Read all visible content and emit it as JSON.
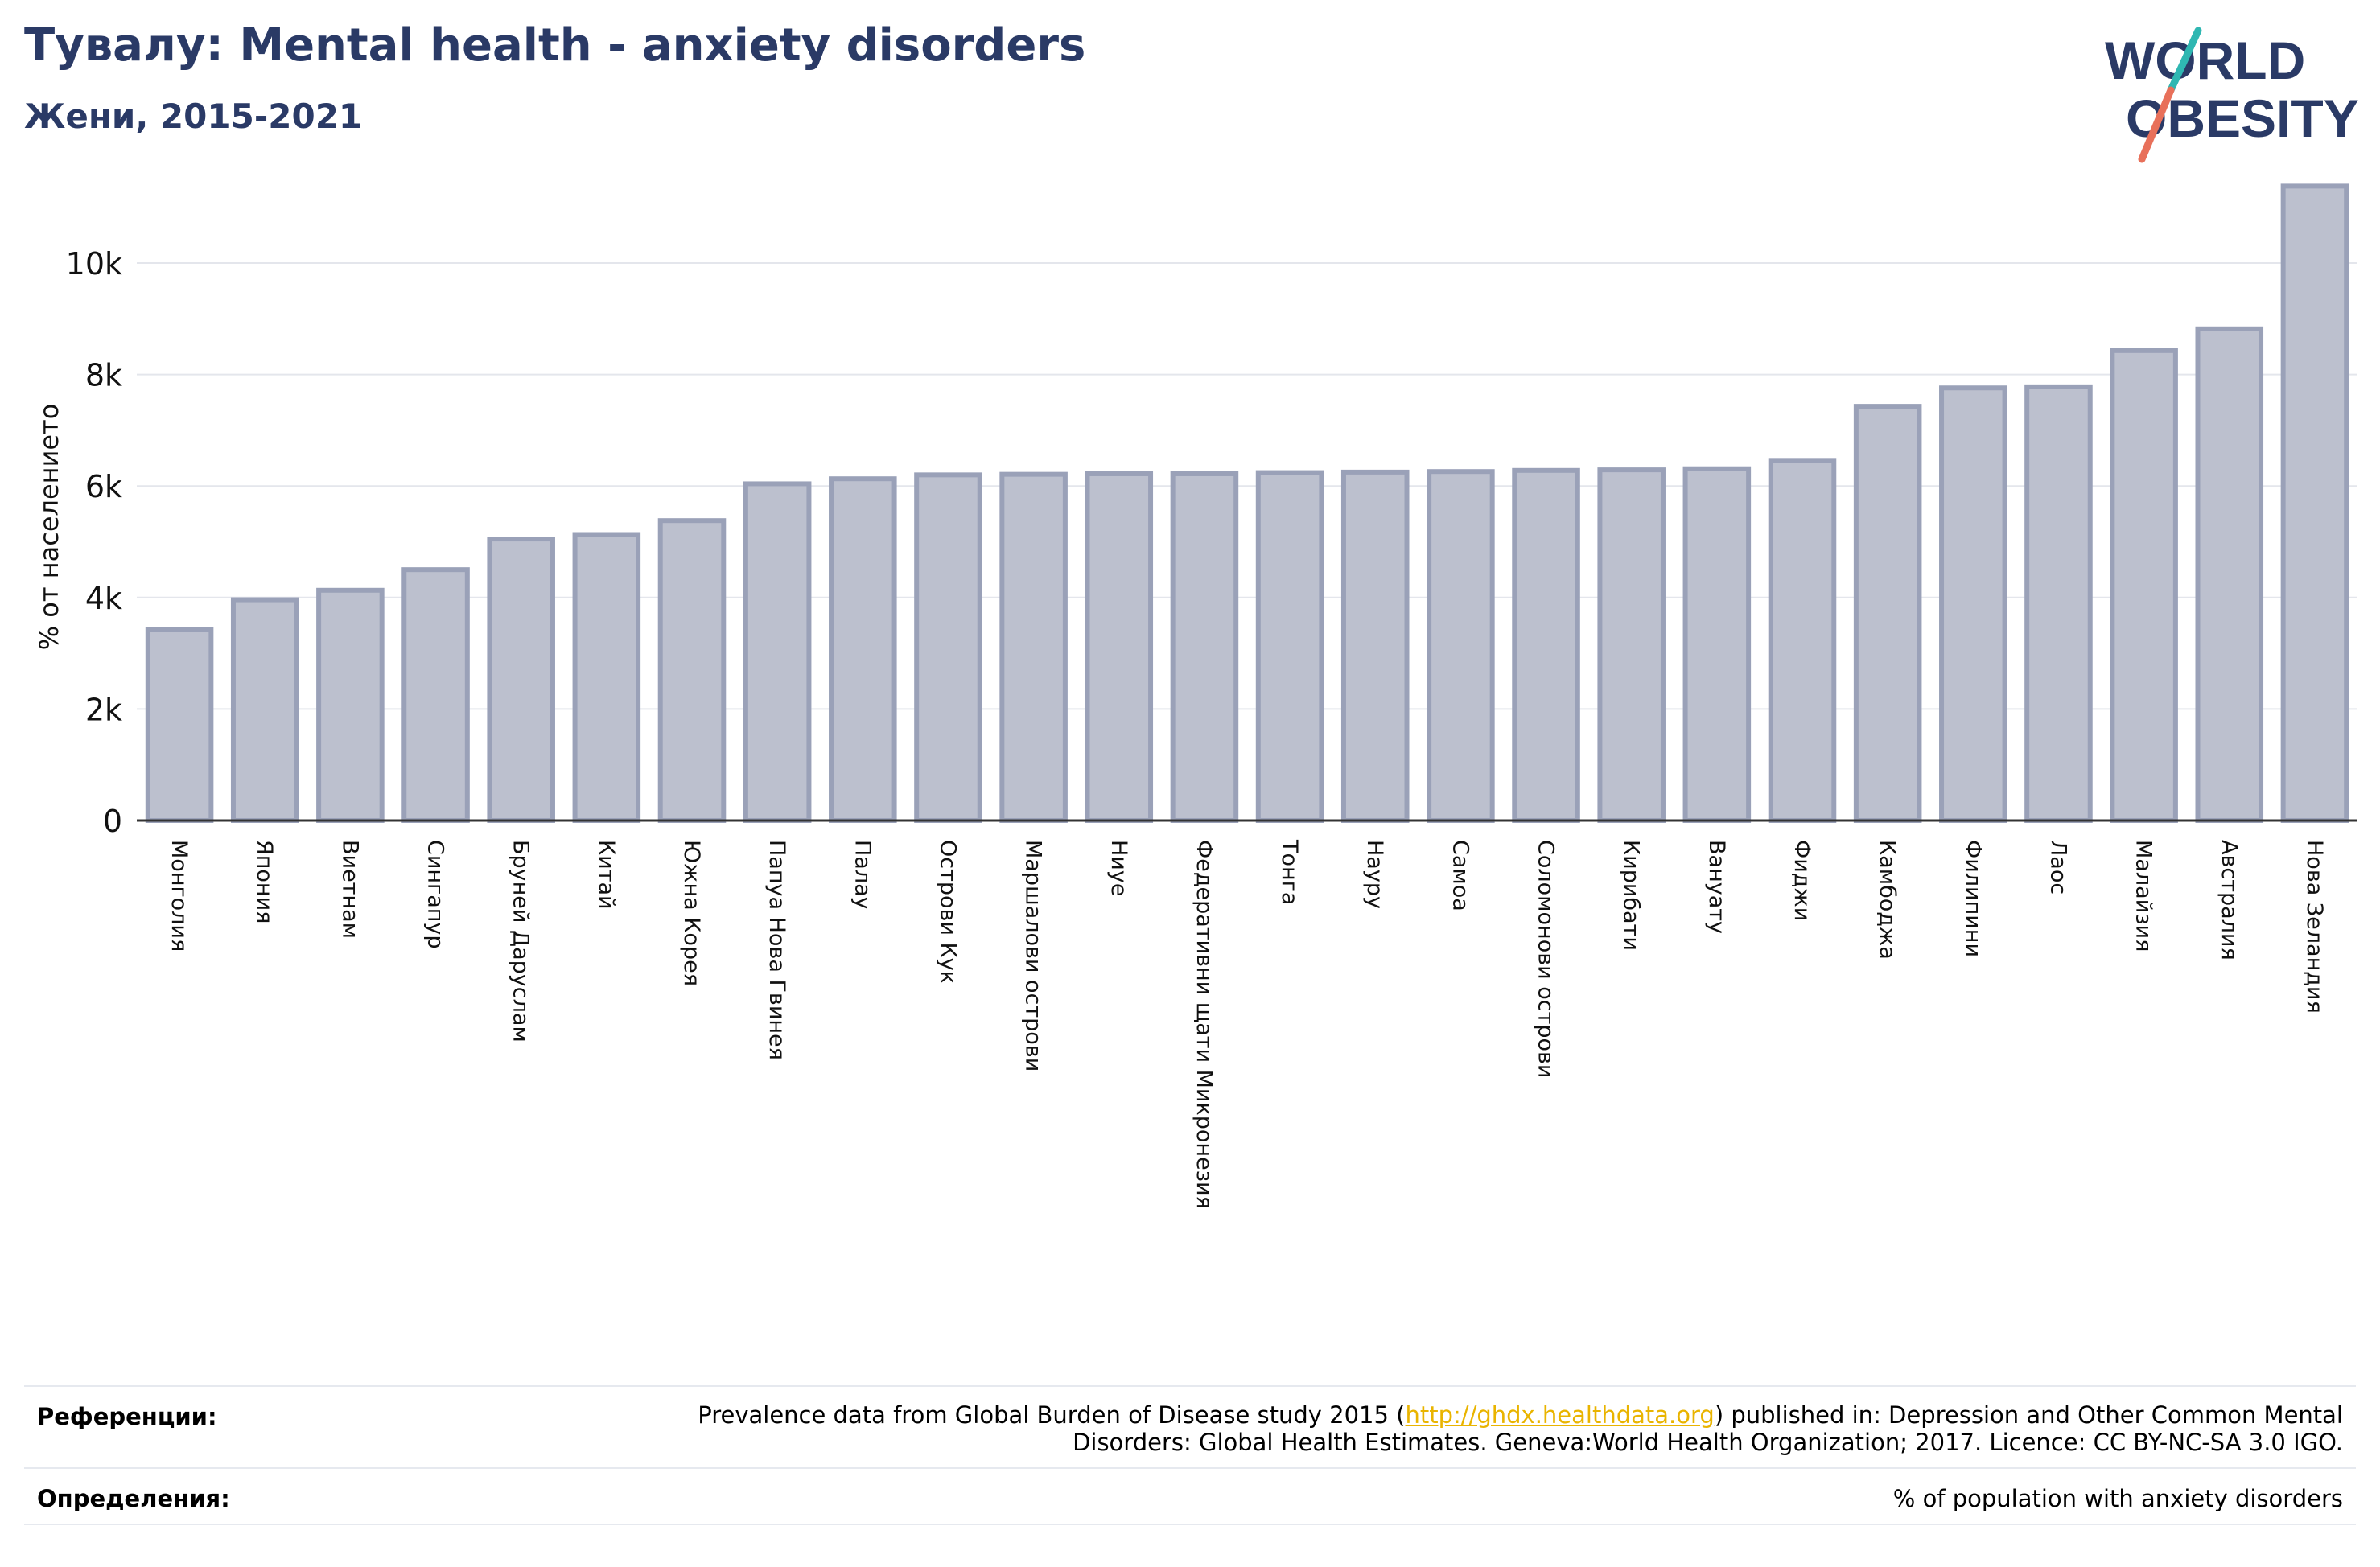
{
  "header": {
    "title": "Тувалу: Mental health - anxiety disorders",
    "subtitle": "Жени, 2015-2021"
  },
  "logo": {
    "line1": "WORLD",
    "line2": "OBESITY"
  },
  "colors": {
    "title": "#2a3a66",
    "bar_fill": "#bcc0ce",
    "bar_stroke": "#9aa1b8",
    "grid": "#e4e6ec",
    "logo_teal": "#2fb7b2",
    "logo_coral": "#e8705a",
    "link": "#e9b400"
  },
  "chart_data": {
    "type": "bar",
    "ylabel": "% от населението",
    "ylim": [
      0,
      11400
    ],
    "yticks": [
      0,
      2000,
      4000,
      6000,
      8000,
      10000
    ],
    "ytick_labels": [
      "0",
      "2k",
      "4k",
      "6k",
      "8k",
      "10k"
    ],
    "grid": true,
    "categories": [
      "Монголия",
      "Япония",
      "Виетнам",
      "Сингапур",
      "Бруней Даруслам",
      "Китай",
      "Южна Корея",
      "Папуа Нова Гвинея",
      "Палау",
      "Острови Кук",
      "Маршалови острови",
      "Ниуе",
      "Федеративни щати Микронезия",
      "Тонга",
      "Науру",
      "Самоа",
      "Соломонови острови",
      "Кирибати",
      "Вануату",
      "Фиджи",
      "Камбоджа",
      "Филипини",
      "Лаос",
      "Малайзия",
      "Австралия",
      "Нова Зеландия"
    ],
    "values": [
      3420,
      3960,
      4130,
      4500,
      5050,
      5130,
      5380,
      6040,
      6130,
      6200,
      6210,
      6220,
      6220,
      6240,
      6250,
      6260,
      6280,
      6290,
      6310,
      6460,
      7430,
      7760,
      7780,
      8430,
      8820,
      11380
    ]
  },
  "footer": {
    "references_label": "Референции:",
    "references_pre": "Prevalence data from Global Burden of Disease study 2015 (",
    "references_link": "http://ghdx.healthdata.org",
    "references_post": ") published in: Depression and Other Common Mental",
    "references_line2": "Disorders: Global Health Estimates. Geneva:World Health Organization; 2017. Licence: CC BY-NC-SA 3.0 IGO.",
    "definitions_label": "Определения:",
    "definitions_text": "% of population with anxiety disorders"
  }
}
